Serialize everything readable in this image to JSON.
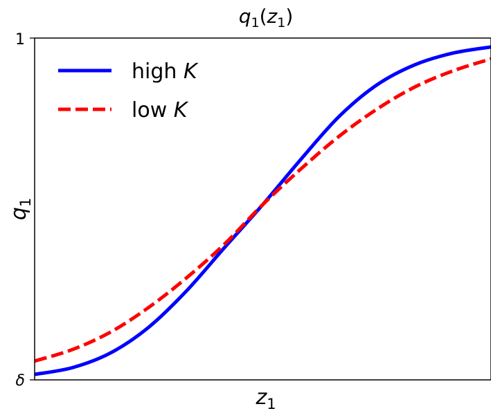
{
  "chart_data": {
    "type": "line",
    "title": "q1(z1)",
    "title_parts": {
      "base": "q",
      "sub": "1",
      "arg_base": "z",
      "arg_sub": "1"
    },
    "xlabel": "z1",
    "xlabel_parts": {
      "base": "z",
      "sub": "1"
    },
    "ylabel": "q1",
    "ylabel_parts": {
      "base": "q",
      "sub": "1"
    },
    "xlim": [
      -3,
      3
    ],
    "ylim": [
      0,
      1
    ],
    "x_ticks": [],
    "y_ticks": [
      {
        "value": 0,
        "label": "δ"
      },
      {
        "value": 1,
        "label": "1"
      }
    ],
    "grid": false,
    "legend": "upper-left",
    "series": [
      {
        "name": "high K",
        "name_parts": {
          "text": "high ",
          "math": "K"
        },
        "color": "#0000ff",
        "style": "solid",
        "x": [
          -3,
          -2.5,
          -2,
          -1.5,
          -1,
          -0.5,
          0,
          0.5,
          1,
          1.5,
          2,
          2.5,
          3
        ],
        "y": [
          0.016,
          0.036,
          0.079,
          0.154,
          0.261,
          0.388,
          0.513,
          0.645,
          0.77,
          0.863,
          0.922,
          0.956,
          0.974
        ]
      },
      {
        "name": "low K",
        "name_parts": {
          "text": "low ",
          "math": "K"
        },
        "color": "#ff0000",
        "style": "dashed",
        "x": [
          -3,
          -2.5,
          -2,
          -1.5,
          -1,
          -0.5,
          0,
          0.5,
          1,
          1.5,
          2,
          2.5,
          3
        ],
        "y": [
          0.055,
          0.089,
          0.14,
          0.212,
          0.299,
          0.398,
          0.513,
          0.617,
          0.712,
          0.792,
          0.857,
          0.904,
          0.939
        ]
      }
    ]
  }
}
